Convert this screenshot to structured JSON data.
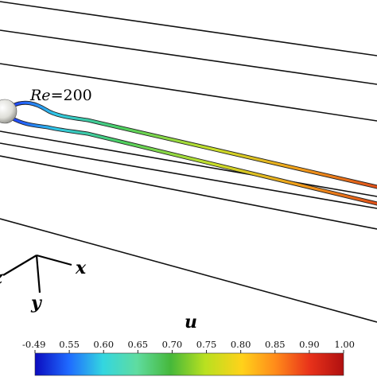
{
  "annotation": {
    "re_symbol": "Re",
    "re_value": "=200"
  },
  "axes_triad": {
    "x_label": "x",
    "y_label": "y",
    "z_label": "z"
  },
  "colorbar": {
    "title": "u",
    "ticks": [
      "-0.49",
      "0.55",
      "0.60",
      "0.65",
      "0.70",
      "0.75",
      "0.80",
      "0.85",
      "0.90",
      "1.00"
    ],
    "colors": [
      "#0b0bbf",
      "#1f6bff",
      "#33d6e0",
      "#5fdca0",
      "#46b83a",
      "#b8e020",
      "#ffd21a",
      "#ff8a1a",
      "#e8321a",
      "#b01010"
    ]
  },
  "scene_colors": {
    "sphere": "#e8e8e2",
    "wire": "#111111"
  }
}
